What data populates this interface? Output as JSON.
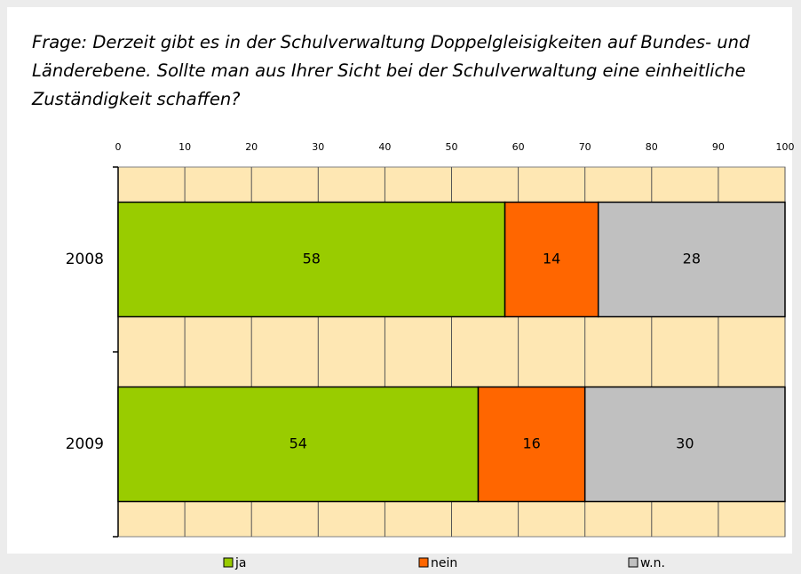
{
  "chart_data": {
    "type": "stacked-barh",
    "title": "Frage: Derzeit gibt es in der Schulverwaltung Doppelgleisigkeiten auf Bundes- und Länderebene. Sollte man aus Ihrer Sicht bei der Schulverwaltung eine einheitliche Zuständigkeit schaffen?",
    "categories": [
      "2008",
      "2009"
    ],
    "series": [
      {
        "name": "ja",
        "color": "#99cc00",
        "values": [
          58,
          54
        ]
      },
      {
        "name": "nein",
        "color": "#ff6600",
        "values": [
          14,
          16
        ]
      },
      {
        "name": "w.n.",
        "color": "#c0c0c0",
        "values": [
          28,
          30
        ]
      }
    ],
    "xlim": [
      0,
      100
    ],
    "xticks": [
      0,
      10,
      20,
      30,
      40,
      50,
      60,
      70,
      80,
      90,
      100
    ],
    "grid": true,
    "plot_background": "#fee7b3",
    "legend": "bottom"
  }
}
